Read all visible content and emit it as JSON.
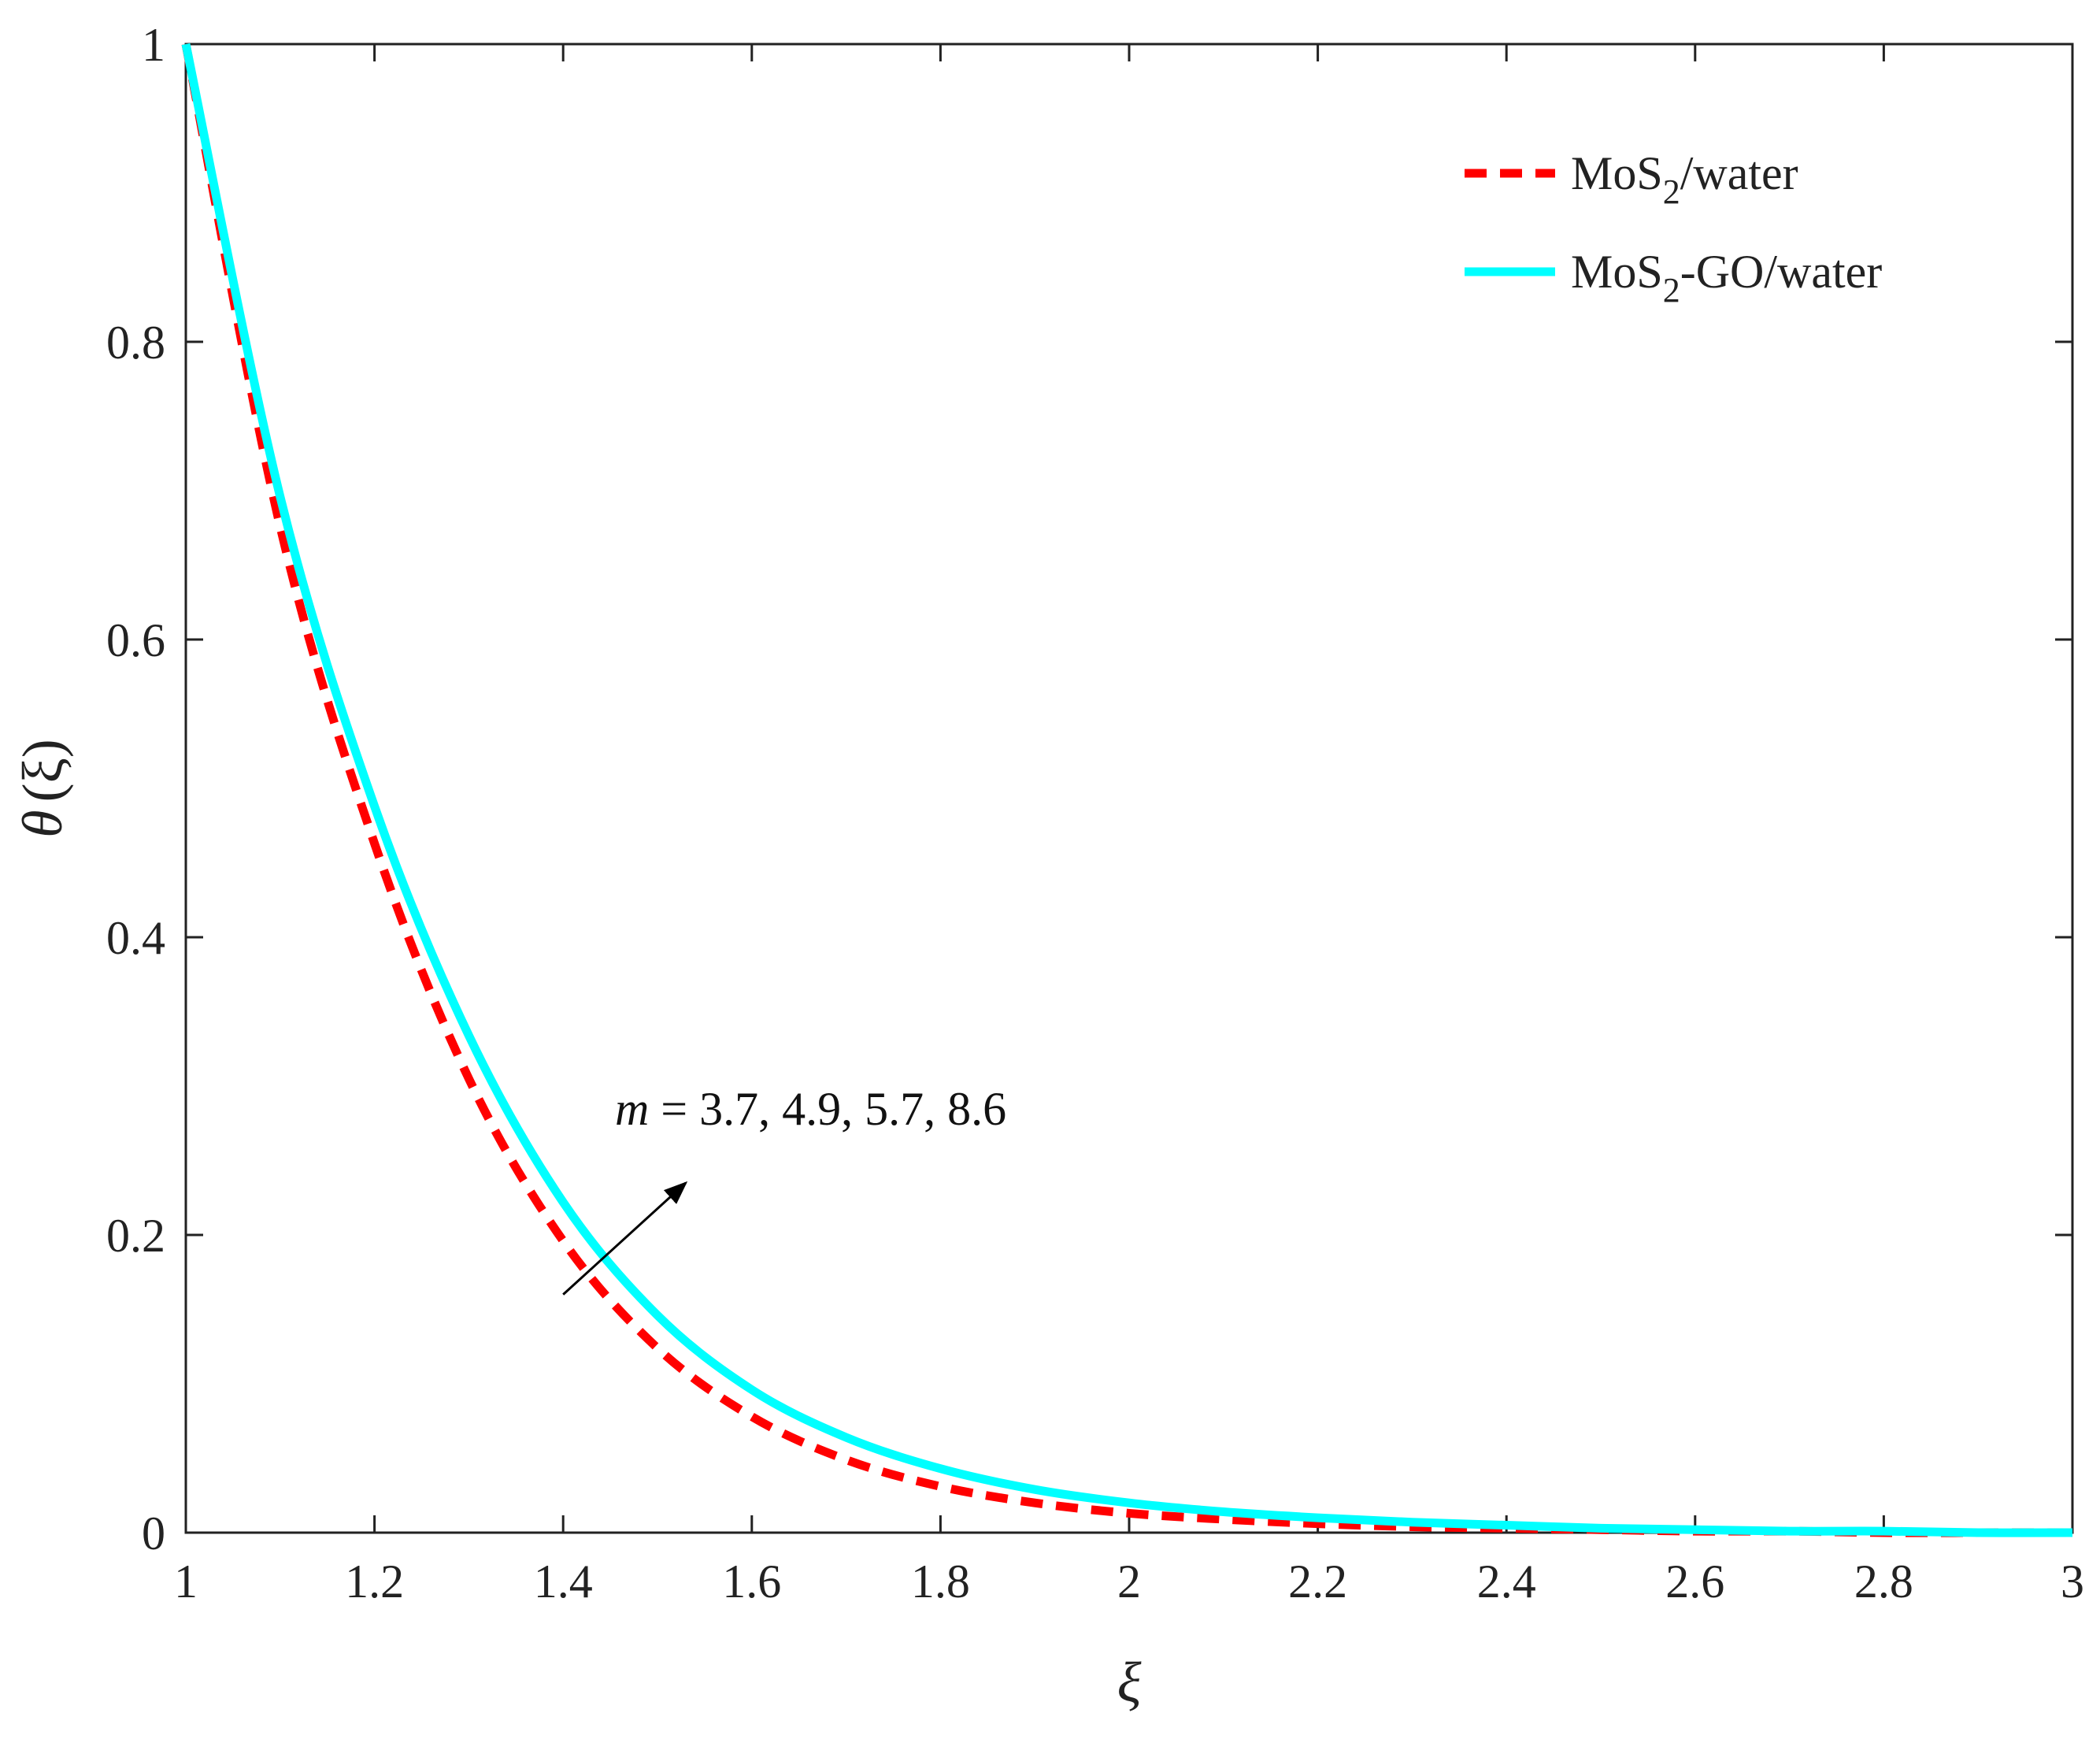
{
  "chart_data": {
    "type": "line",
    "title": "",
    "xlabel": "ξ",
    "ylabel_symbol": "θ",
    "ylabel_arg": "(ξ)",
    "xlim": [
      1,
      3
    ],
    "ylim": [
      0,
      1
    ],
    "xticks": [
      1,
      1.2,
      1.4,
      1.6,
      1.8,
      2,
      2.2,
      2.4,
      2.6,
      2.8,
      3
    ],
    "yticks": [
      0,
      0.2,
      0.4,
      0.6,
      0.8,
      1
    ],
    "grid": false,
    "legend_position": "top-right",
    "x": [
      1.0,
      1.1,
      1.2,
      1.3,
      1.4,
      1.5,
      1.6,
      1.7,
      1.8,
      1.9,
      2.0,
      2.1,
      2.2,
      2.3,
      2.4,
      2.5,
      2.6,
      2.7,
      2.8,
      2.9,
      3.0
    ],
    "series": [
      {
        "name": "MoS2/water",
        "legend_main": "MoS",
        "legend_sub": "2",
        "legend_tail": "/water",
        "color": "#ff0000",
        "style": "dashed",
        "values": [
          1.0,
          0.676,
          0.463,
          0.305,
          0.196,
          0.124,
          0.078,
          0.049,
          0.031,
          0.02,
          0.013,
          0.009,
          0.006,
          0.004,
          0.003,
          0.002,
          0.001,
          0.001,
          0.0,
          0.0,
          0.0
        ]
      },
      {
        "name": "MoS2-GO/water",
        "legend_main": "MoS",
        "legend_sub": "2",
        "legend_tail": "-GO/water",
        "color": "#00ffff",
        "style": "solid",
        "values": [
          1.0,
          0.696,
          0.488,
          0.334,
          0.222,
          0.146,
          0.096,
          0.064,
          0.043,
          0.029,
          0.02,
          0.014,
          0.01,
          0.007,
          0.005,
          0.003,
          0.002,
          0.001,
          0.001,
          0.0,
          0.0
        ]
      }
    ],
    "annotation": {
      "var": "m",
      "text": " = 3.7, 4.9, 5.7, 8.6",
      "arrow_from": [
        1.4,
        0.16
      ],
      "arrow_to": [
        1.53,
        0.235
      ],
      "text_at": [
        1.53,
        0.29
      ]
    }
  }
}
